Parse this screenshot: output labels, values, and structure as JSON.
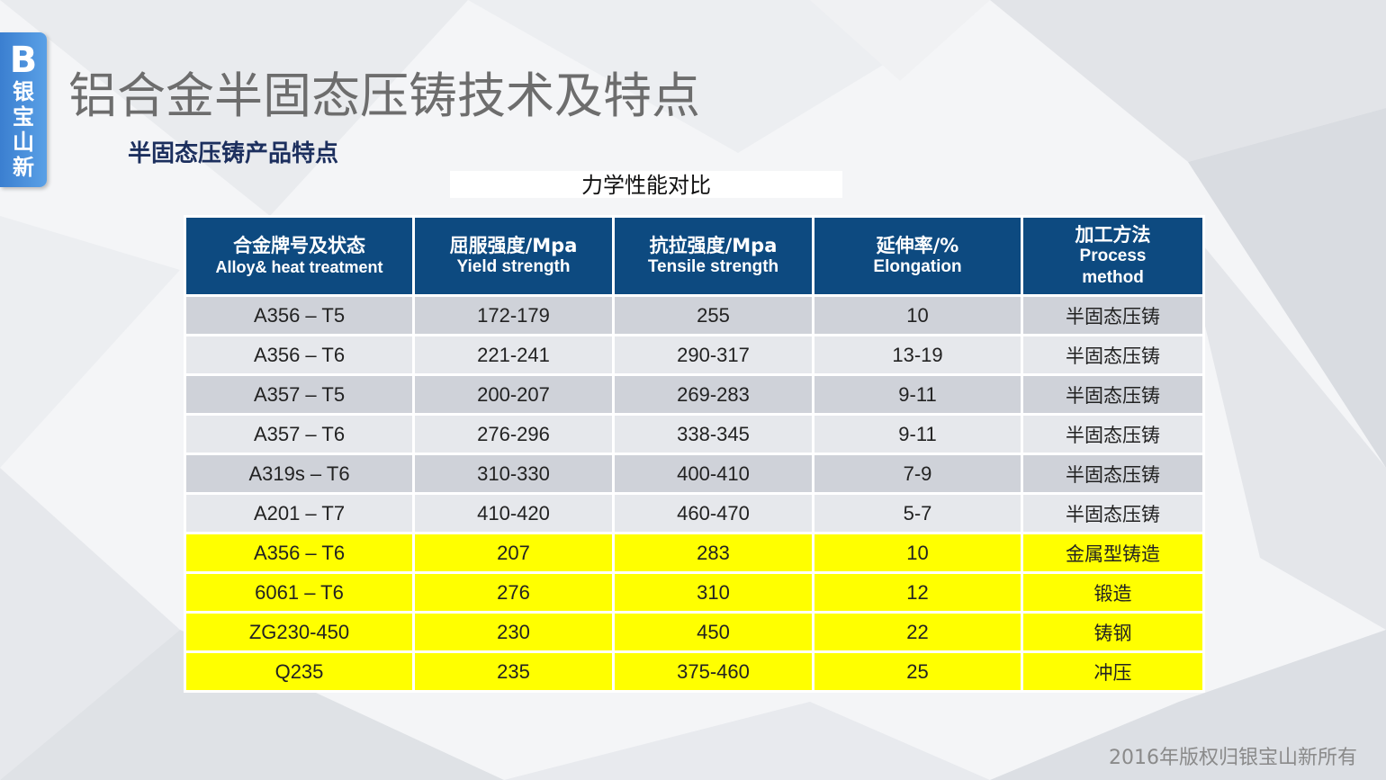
{
  "logo": {
    "letter": "B",
    "name_chars": [
      "银",
      "宝",
      "山",
      "新"
    ]
  },
  "title": "铝合金半固态压铸技术及特点",
  "subtitle": "半固态压铸产品特点",
  "table_caption": "力学性能对比",
  "table": {
    "headers": [
      {
        "zh": "合金牌号及状态",
        "en": "Alloy& heat treatment"
      },
      {
        "zh": "屈服强度/Mpa",
        "en": "Yield strength"
      },
      {
        "zh": "抗拉强度/Mpa",
        "en": "Tensile strength"
      },
      {
        "zh": "延伸率/%",
        "en": "Elongation"
      },
      {
        "zh": "加工方法",
        "en_lines": [
          "Process",
          "method"
        ]
      }
    ],
    "rows": [
      {
        "alloy": "A356 – T5",
        "yield": "172-179",
        "tensile": "255",
        "elongation": "10",
        "process": "半固态压铸",
        "highlight": false
      },
      {
        "alloy": "A356 – T6",
        "yield": "221-241",
        "tensile": "290-317",
        "elongation": "13-19",
        "process": "半固态压铸",
        "highlight": false
      },
      {
        "alloy": "A357 – T5",
        "yield": "200-207",
        "tensile": "269-283",
        "elongation": "9-11",
        "process": "半固态压铸",
        "highlight": false
      },
      {
        "alloy": "A357 – T6",
        "yield": "276-296",
        "tensile": "338-345",
        "elongation": "9-11",
        "process": "半固态压铸",
        "highlight": false
      },
      {
        "alloy": "A319s – T6",
        "yield": "310-330",
        "tensile": "400-410",
        "elongation": "7-9",
        "process": "半固态压铸",
        "highlight": false
      },
      {
        "alloy": "A201 – T7",
        "yield": "410-420",
        "tensile": "460-470",
        "elongation": "5-7",
        "process": "半固态压铸",
        "highlight": false
      },
      {
        "alloy": "A356 – T6",
        "yield": "207",
        "tensile": "283",
        "elongation": "10",
        "process": "金属型铸造",
        "highlight": true
      },
      {
        "alloy": "6061 – T6",
        "yield": "276",
        "tensile": "310",
        "elongation": "12",
        "process": "锻造",
        "highlight": true
      },
      {
        "alloy": "ZG230-450",
        "yield": "230",
        "tensile": "450",
        "elongation": "22",
        "process": "铸钢",
        "highlight": true
      },
      {
        "alloy": "Q235",
        "yield": "235",
        "tensile": "375-460",
        "elongation": "25",
        "process": "冲压",
        "highlight": true
      }
    ]
  },
  "footer": "2016年版权归银宝山新所有",
  "colors": {
    "header_bg": "#0d4a80",
    "row_odd": "#cfd2d9",
    "row_even": "#e6e8ec",
    "highlight": "#ffff00",
    "title": "#6d6d6d",
    "subtitle": "#1c2f5e",
    "logo": "#3b7fd0"
  }
}
